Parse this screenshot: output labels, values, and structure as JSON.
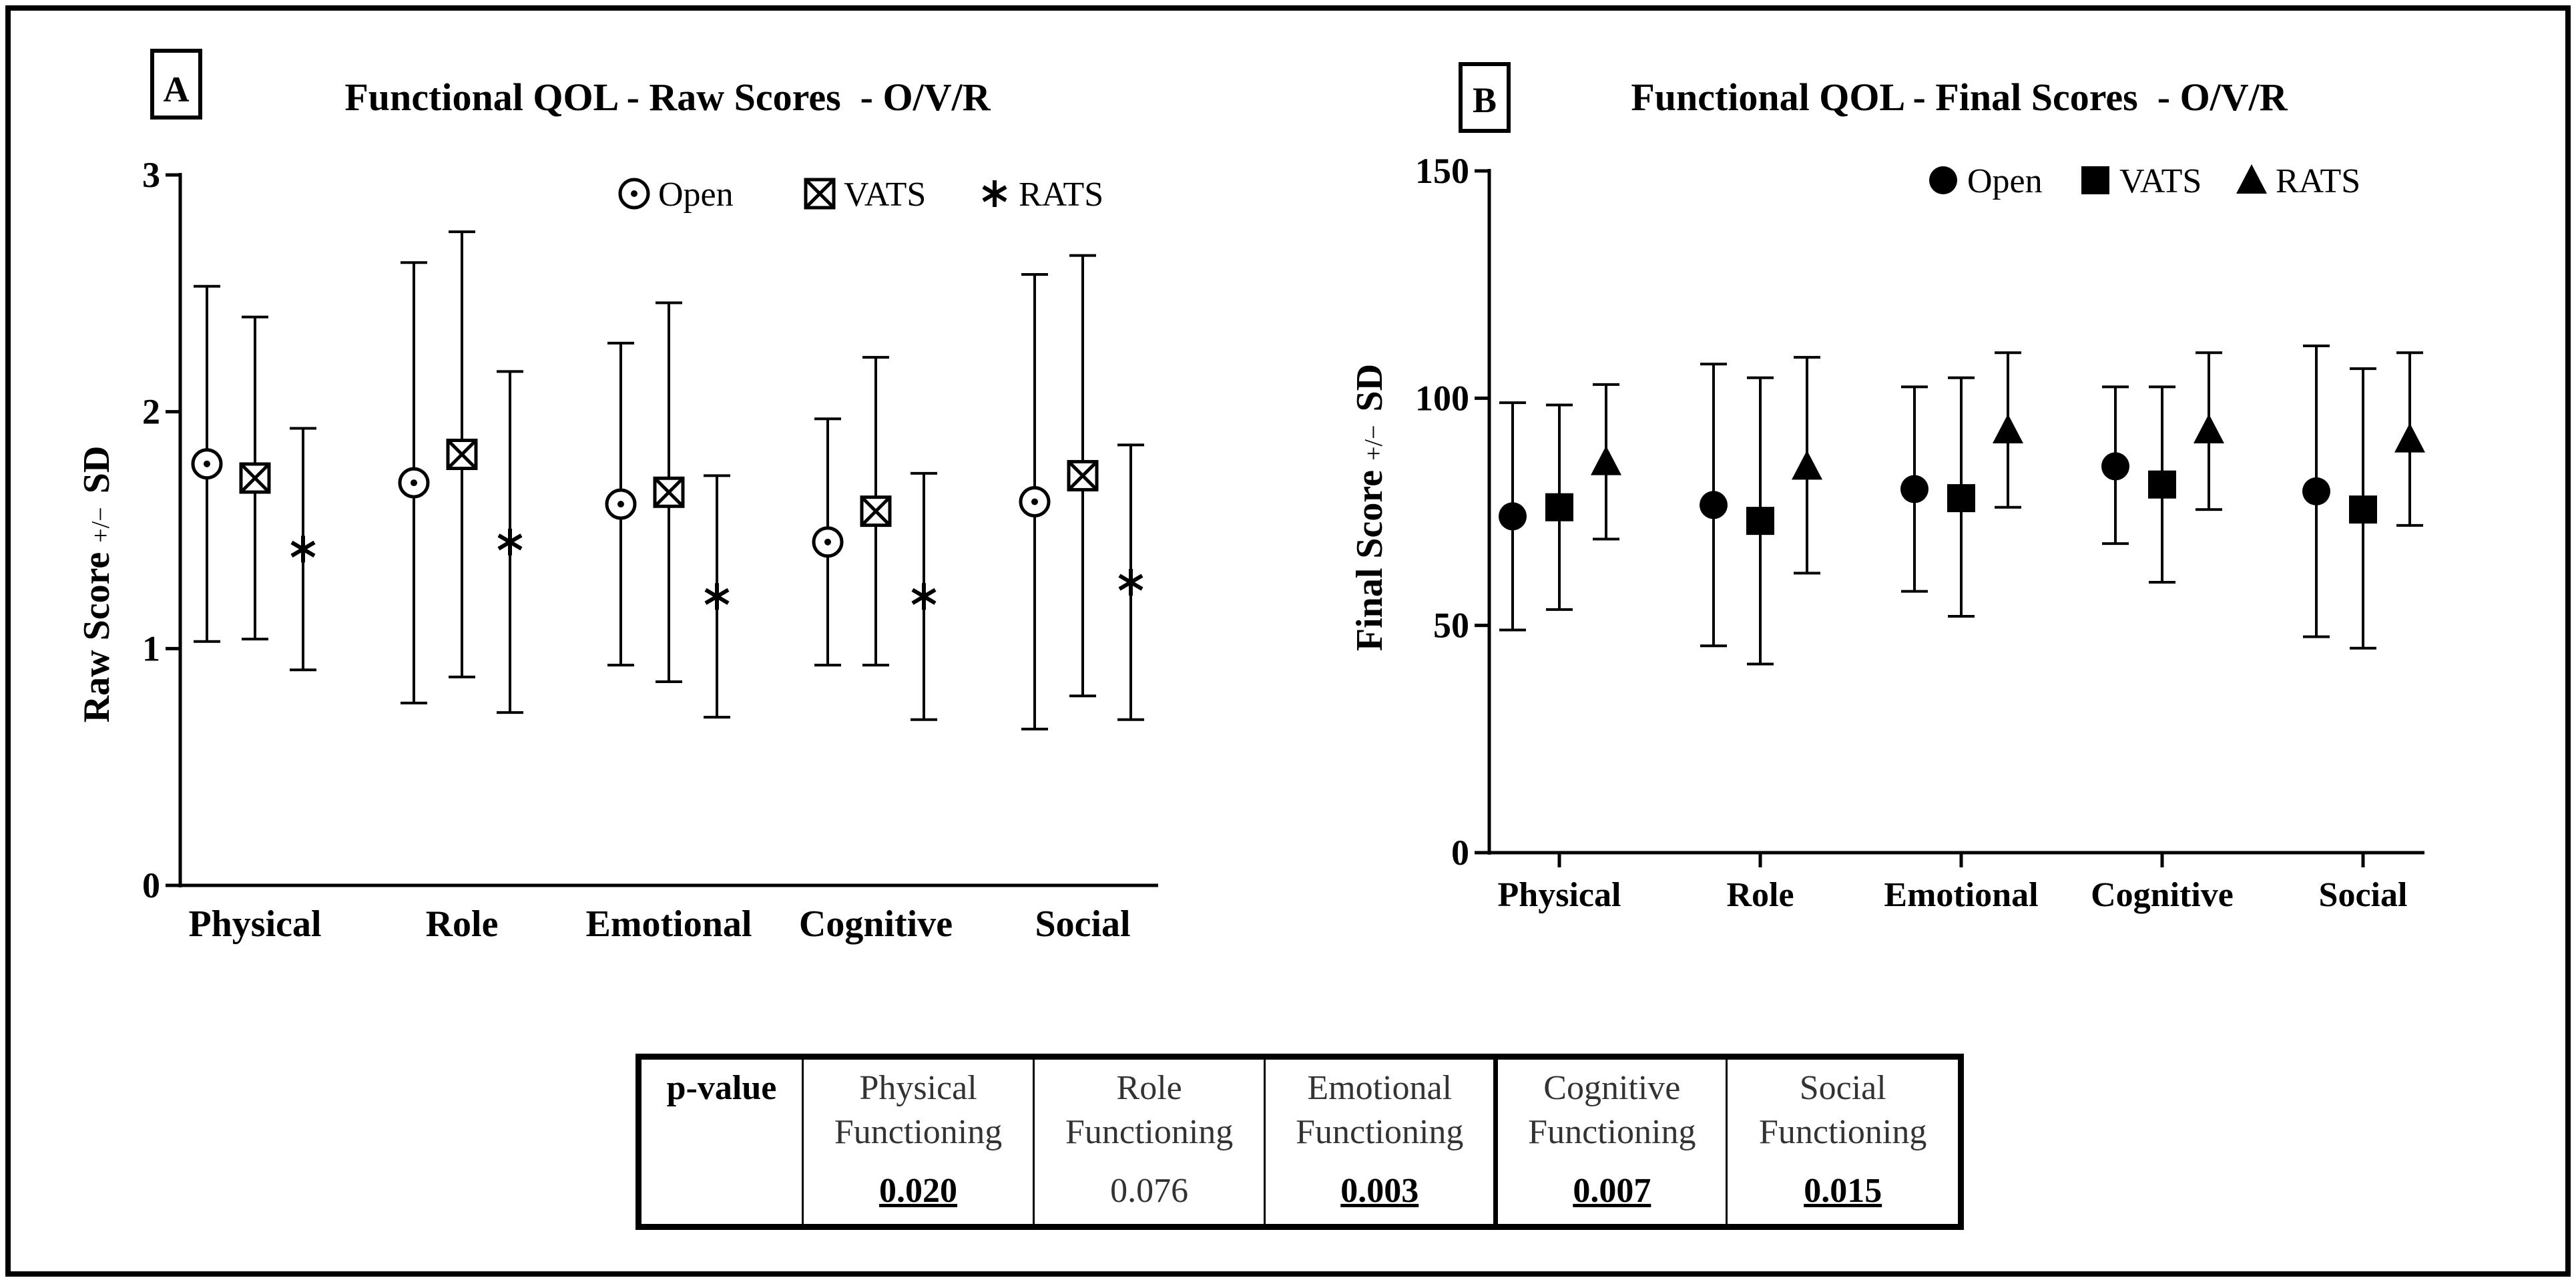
{
  "chart_data": [
    {
      "type": "scatter",
      "panel_label": "A",
      "title": "Functional QOL - Raw Scores  - O/V/R",
      "ylabel_main": "Raw Score",
      "ylabel_small": "+/−",
      "ylabel_end": "SD",
      "xlabel": "",
      "categories": [
        "Physical",
        "Role",
        "Emotional",
        "Cognitive",
        "Social"
      ],
      "ylim": [
        0,
        3
      ],
      "yticks": [
        0,
        1,
        2,
        3
      ],
      "ytick_labels": [
        "0",
        "1",
        "2",
        "3"
      ],
      "legend_position": "top-right",
      "series": [
        {
          "name": "Open",
          "marker": "circle-dot",
          "values": [
            1.78,
            1.7,
            1.61,
            1.45,
            1.62
          ],
          "lower": [
            1.03,
            0.77,
            0.93,
            0.93,
            0.66
          ],
          "upper": [
            2.53,
            2.63,
            2.29,
            1.97,
            2.58
          ]
        },
        {
          "name": "VATS",
          "marker": "square-x",
          "values": [
            1.72,
            1.82,
            1.66,
            1.58,
            1.73
          ],
          "lower": [
            1.04,
            0.88,
            0.86,
            0.93,
            0.8
          ],
          "upper": [
            2.4,
            2.76,
            2.46,
            2.23,
            2.66
          ]
        },
        {
          "name": "RATS",
          "marker": "asterisk",
          "values": [
            1.42,
            1.45,
            1.22,
            1.22,
            1.28
          ],
          "lower": [
            0.91,
            0.73,
            0.71,
            0.7,
            0.7
          ],
          "upper": [
            1.93,
            2.17,
            1.73,
            1.74,
            1.86
          ]
        }
      ]
    },
    {
      "type": "scatter",
      "panel_label": "B",
      "title": "Functional QOL - Final Scores  - O/V/R",
      "ylabel_main": "Final Score",
      "ylabel_small": "+/−",
      "ylabel_end": "SD",
      "xlabel": "",
      "categories": [
        "Physical",
        "Role",
        "Emotional",
        "Cognitive",
        "Social"
      ],
      "ylim": [
        0,
        150
      ],
      "yticks": [
        0,
        50,
        100,
        150
      ],
      "ytick_labels": [
        "0",
        "50",
        "100",
        "150"
      ],
      "legend_position": "top-right",
      "series": [
        {
          "name": "Open",
          "marker": "filled-circle",
          "values": [
            74,
            76.5,
            80,
            85,
            79.5
          ],
          "lower": [
            49,
            45.5,
            57.5,
            68,
            47.5
          ],
          "upper": [
            99,
            107.5,
            102.5,
            102.5,
            111.5
          ]
        },
        {
          "name": "VATS",
          "marker": "filled-square",
          "values": [
            76,
            73,
            78,
            81,
            75.5
          ],
          "lower": [
            53.5,
            41.5,
            52,
            59.5,
            45
          ],
          "upper": [
            98.5,
            104.5,
            104.5,
            102.5,
            106.5
          ]
        },
        {
          "name": "RATS",
          "marker": "filled-triangle",
          "values": [
            86,
            85,
            93,
            93,
            91
          ],
          "lower": [
            69,
            61.5,
            76,
            75.5,
            72
          ],
          "upper": [
            103,
            109,
            110,
            110,
            110
          ]
        }
      ]
    }
  ],
  "pvalue_table": {
    "header": "p-value",
    "columns": [
      {
        "label": "Physical Functioning",
        "value": "0.020",
        "significant": true
      },
      {
        "label": "Role Functioning",
        "value": "0.076",
        "significant": false
      },
      {
        "label": "Emotional Functioning",
        "value": "0.003",
        "significant": true
      },
      {
        "label": "Cognitive Functioning",
        "value": "0.007",
        "significant": true
      },
      {
        "label": "Social Functioning",
        "value": "0.015",
        "significant": true
      }
    ]
  }
}
